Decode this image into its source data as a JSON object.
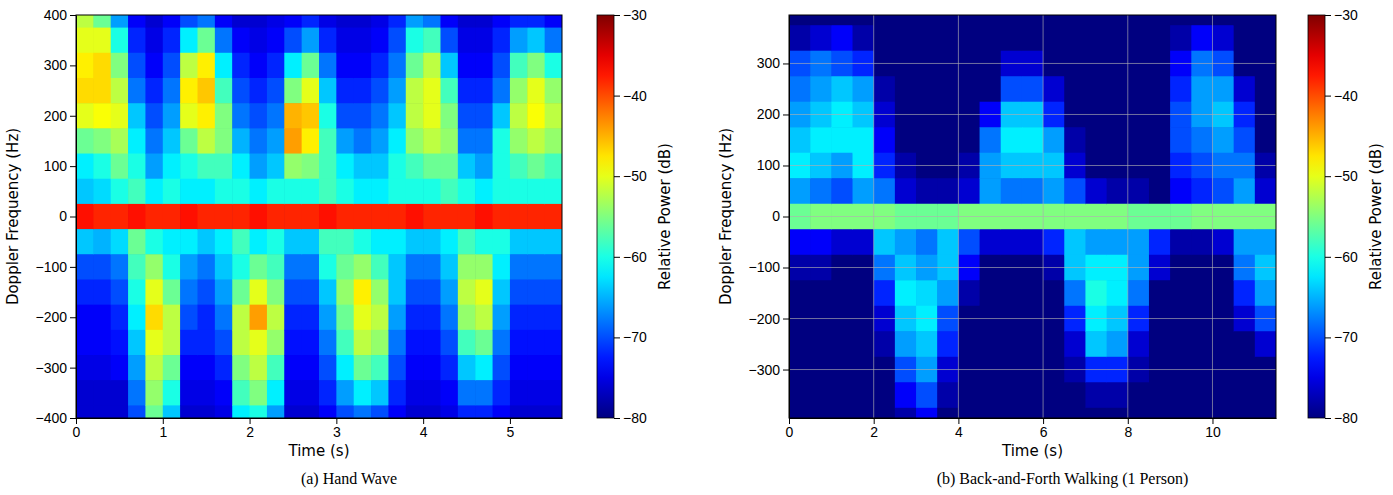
{
  "chart_data": [
    {
      "type": "heatmap",
      "title": "(a) Hand Wave",
      "x_label": "Time (s)",
      "y_label": "Doppler Frequency (Hz)",
      "xlim": [
        0,
        5.6
      ],
      "ylim": [
        -400,
        400
      ],
      "xticks": [
        0,
        1,
        2,
        3,
        4,
        5
      ],
      "yticks": [
        {
          "value": -400,
          "label": "−400"
        },
        {
          "value": -300,
          "label": "−300"
        },
        {
          "value": -200,
          "label": "−200"
        },
        {
          "value": -100,
          "label": "−100"
        },
        0,
        100,
        200,
        300,
        400
      ],
      "grid": false,
      "x": [
        0.1,
        0.3,
        0.5,
        0.7,
        0.9,
        1.1,
        1.3,
        1.5,
        1.7,
        1.9,
        2.1,
        2.3,
        2.5,
        2.7,
        2.9,
        3.1,
        3.3,
        3.5,
        3.7,
        3.9,
        4.1,
        4.3,
        4.5,
        4.7,
        4.9,
        5.1,
        5.3,
        5.5
      ],
      "y": [
        400,
        350,
        300,
        250,
        200,
        150,
        100,
        50,
        0,
        -50,
        -100,
        -150,
        -200,
        -250,
        -300,
        -350,
        -400
      ],
      "values": [
        [
          -52,
          -50,
          -48,
          -47,
          -50,
          -56,
          -62,
          -64,
          -37,
          -64,
          -70,
          -72,
          -74,
          -74,
          -75,
          -76,
          -76
        ],
        [
          -56,
          -50,
          -47,
          -47,
          -49,
          -55,
          -60,
          -63,
          -38,
          -65,
          -70,
          -72,
          -74,
          -74,
          -75,
          -76,
          -76
        ],
        [
          -66,
          -60,
          -55,
          -52,
          -50,
          -53,
          -56,
          -60,
          -38,
          -63,
          -68,
          -70,
          -72,
          -73,
          -74,
          -76,
          -76
        ],
        [
          -74,
          -72,
          -70,
          -68,
          -64,
          -62,
          -60,
          -58,
          -37,
          -56,
          -58,
          -60,
          -62,
          -64,
          -66,
          -68,
          -70
        ],
        [
          -76,
          -75,
          -74,
          -72,
          -70,
          -68,
          -66,
          -62,
          -38,
          -60,
          -54,
          -50,
          -47,
          -50,
          -52,
          -54,
          -56
        ],
        [
          -74,
          -72,
          -70,
          -68,
          -66,
          -64,
          -62,
          -60,
          -38,
          -62,
          -60,
          -56,
          -52,
          -52,
          -56,
          -60,
          -64
        ],
        [
          -70,
          -62,
          -52,
          -48,
          -50,
          -56,
          -60,
          -62,
          -37,
          -62,
          -66,
          -68,
          -70,
          -72,
          -74,
          -75,
          -76
        ],
        [
          -68,
          -56,
          -48,
          -46,
          -48,
          -52,
          -58,
          -62,
          -38,
          -64,
          -68,
          -70,
          -72,
          -72,
          -74,
          -75,
          -76
        ],
        [
          -74,
          -68,
          -62,
          -58,
          -55,
          -55,
          -58,
          -60,
          -38,
          -62,
          -64,
          -66,
          -68,
          -70,
          -72,
          -74,
          -75
        ],
        [
          -76,
          -74,
          -72,
          -70,
          -68,
          -65,
          -62,
          -60,
          -38,
          -58,
          -60,
          -56,
          -52,
          -52,
          -55,
          -58,
          -62
        ],
        [
          -76,
          -75,
          -74,
          -72,
          -70,
          -68,
          -66,
          -62,
          -37,
          -62,
          -56,
          -50,
          -44,
          -50,
          -52,
          -55,
          -60
        ],
        [
          -75,
          -74,
          -72,
          -70,
          -68,
          -66,
          -64,
          -60,
          -38,
          -60,
          -58,
          -55,
          -52,
          -54,
          -58,
          -62,
          -66
        ],
        [
          -74,
          -70,
          -62,
          -55,
          -45,
          -44,
          -54,
          -60,
          -38,
          -64,
          -68,
          -70,
          -72,
          -73,
          -74,
          -75,
          -76
        ],
        [
          -72,
          -66,
          -56,
          -50,
          -46,
          -48,
          -55,
          -60,
          -38,
          -64,
          -68,
          -70,
          -72,
          -73,
          -74,
          -75,
          -76
        ],
        [
          -75,
          -72,
          -68,
          -64,
          -60,
          -58,
          -58,
          -58,
          -37,
          -58,
          -60,
          -64,
          -66,
          -68,
          -70,
          -72,
          -74
        ],
        [
          -76,
          -75,
          -74,
          -72,
          -70,
          -66,
          -62,
          -60,
          -38,
          -58,
          -56,
          -54,
          -56,
          -58,
          -62,
          -66,
          -70
        ],
        [
          -76,
          -75,
          -74,
          -72,
          -70,
          -68,
          -64,
          -62,
          -38,
          -60,
          -54,
          -48,
          -50,
          -52,
          -56,
          -62,
          -68
        ],
        [
          -75,
          -74,
          -72,
          -70,
          -68,
          -66,
          -64,
          -62,
          -38,
          -62,
          -58,
          -54,
          -52,
          -54,
          -58,
          -64,
          -70
        ],
        [
          -72,
          -70,
          -68,
          -66,
          -64,
          -62,
          -60,
          -60,
          -38,
          -62,
          -64,
          -64,
          -66,
          -68,
          -70,
          -72,
          -74
        ],
        [
          -66,
          -60,
          -56,
          -52,
          -52,
          -54,
          -58,
          -60,
          -37,
          -64,
          -68,
          -70,
          -72,
          -73,
          -74,
          -75,
          -76
        ],
        [
          -68,
          -58,
          -52,
          -50,
          -50,
          -52,
          -56,
          -60,
          -38,
          -64,
          -68,
          -70,
          -72,
          -73,
          -74,
          -75,
          -76
        ],
        [
          -74,
          -70,
          -64,
          -58,
          -55,
          -54,
          -56,
          -58,
          -38,
          -62,
          -64,
          -66,
          -68,
          -70,
          -72,
          -74,
          -75
        ],
        [
          -76,
          -75,
          -74,
          -72,
          -70,
          -68,
          -64,
          -60,
          -38,
          -58,
          -54,
          -52,
          -54,
          -58,
          -64,
          -68,
          -72
        ],
        [
          -76,
          -75,
          -74,
          -72,
          -70,
          -68,
          -66,
          -62,
          -37,
          -60,
          -54,
          -50,
          -52,
          -56,
          -62,
          -68,
          -72
        ],
        [
          -74,
          -72,
          -70,
          -68,
          -64,
          -60,
          -60,
          -60,
          -38,
          -60,
          -62,
          -64,
          -66,
          -68,
          -70,
          -72,
          -74
        ],
        [
          -72,
          -66,
          -58,
          -54,
          -52,
          -54,
          -58,
          -60,
          -38,
          -64,
          -68,
          -70,
          -72,
          -73,
          -74,
          -75,
          -76
        ],
        [
          -72,
          -64,
          -55,
          -50,
          -49,
          -52,
          -56,
          -60,
          -38,
          -64,
          -68,
          -70,
          -72,
          -73,
          -74,
          -75,
          -76
        ],
        [
          -74,
          -68,
          -60,
          -54,
          -52,
          -54,
          -58,
          -60,
          -38,
          -64,
          -68,
          -70,
          -72,
          -73,
          -74,
          -75,
          -76
        ]
      ],
      "colorbar": {
        "label": "Relative Power (dB)",
        "range": [
          -80,
          -30
        ],
        "ticks": [
          {
            "value": -80,
            "label": "−80"
          },
          {
            "value": -70,
            "label": "−70"
          },
          {
            "value": -60,
            "label": "−60"
          },
          {
            "value": -50,
            "label": "−50"
          },
          {
            "value": -40,
            "label": "−40"
          },
          {
            "value": -30,
            "label": "−30"
          }
        ]
      }
    },
    {
      "type": "heatmap",
      "title": "(b) Back-and-Forth Walking (1 Person)",
      "x_label": "Time (s)",
      "y_label": "Doppler Frequency (Hz)",
      "xlim": [
        0,
        11.5
      ],
      "ylim": [
        -395,
        395
      ],
      "xticks": [
        0,
        2,
        4,
        6,
        8,
        10
      ],
      "yticks": [
        {
          "value": -300,
          "label": "−300"
        },
        {
          "value": -200,
          "label": "−200"
        },
        {
          "value": -100,
          "label": "−100"
        },
        0,
        100,
        200,
        300
      ],
      "grid": true,
      "x": [
        0.25,
        0.75,
        1.25,
        1.75,
        2.25,
        2.75,
        3.25,
        3.75,
        4.25,
        4.75,
        5.25,
        5.75,
        6.25,
        6.75,
        7.25,
        7.75,
        8.25,
        8.75,
        9.25,
        9.75,
        10.25,
        10.75,
        11.25
      ],
      "y": [
        400,
        350,
        300,
        250,
        200,
        150,
        100,
        50,
        0,
        -50,
        -100,
        -150,
        -200,
        -250,
        -300,
        -350,
        -400
      ],
      "values": [
        [
          -80,
          -78,
          -70,
          -68,
          -66,
          -64,
          -62,
          -66,
          -56,
          -74,
          -78,
          -80,
          -80,
          -80,
          -80,
          -80,
          -80
        ],
        [
          -80,
          -76,
          -68,
          -66,
          -64,
          -62,
          -64,
          -68,
          -55,
          -74,
          -78,
          -80,
          -80,
          -80,
          -80,
          -80,
          -80
        ],
        [
          -80,
          -74,
          -70,
          -64,
          -62,
          -62,
          -66,
          -70,
          -55,
          -76,
          -80,
          -80,
          -80,
          -80,
          -80,
          -80,
          -80
        ],
        [
          -80,
          -78,
          -72,
          -66,
          -64,
          -62,
          -62,
          -66,
          -55,
          -76,
          -80,
          -80,
          -80,
          -80,
          -80,
          -80,
          -80
        ],
        [
          -80,
          -80,
          -80,
          -78,
          -76,
          -74,
          -72,
          -68,
          -55,
          -64,
          -68,
          -72,
          -76,
          -78,
          -80,
          -80,
          -80
        ],
        [
          -80,
          -80,
          -80,
          -80,
          -80,
          -80,
          -78,
          -76,
          -56,
          -66,
          -64,
          -62,
          -64,
          -66,
          -70,
          -74,
          -78
        ],
        [
          -80,
          -80,
          -80,
          -80,
          -80,
          -80,
          -80,
          -78,
          -56,
          -68,
          -66,
          -63,
          -62,
          -64,
          -66,
          -70,
          -74
        ],
        [
          -80,
          -80,
          -80,
          -80,
          -80,
          -80,
          -80,
          -78,
          -56,
          -64,
          -64,
          -66,
          -70,
          -72,
          -76,
          -78,
          -80
        ],
        [
          -80,
          -80,
          -80,
          -80,
          -80,
          -80,
          -78,
          -76,
          -55,
          -70,
          -74,
          -78,
          -80,
          -80,
          -80,
          -80,
          -80
        ],
        [
          -80,
          -80,
          -80,
          -80,
          -74,
          -68,
          -66,
          -66,
          -55,
          -76,
          -80,
          -80,
          -80,
          -80,
          -80,
          -80,
          -80
        ],
        [
          -80,
          -80,
          -76,
          -70,
          -64,
          -62,
          -64,
          -68,
          -55,
          -76,
          -80,
          -80,
          -80,
          -80,
          -80,
          -80,
          -80
        ],
        [
          -80,
          -80,
          -76,
          -70,
          -64,
          -62,
          -64,
          -68,
          -55,
          -76,
          -80,
          -80,
          -80,
          -80,
          -80,
          -80,
          -80
        ],
        [
          -80,
          -80,
          -80,
          -76,
          -72,
          -66,
          -64,
          -66,
          -55,
          -72,
          -78,
          -80,
          -80,
          -80,
          -80,
          -80,
          -80
        ],
        [
          -80,
          -80,
          -80,
          -80,
          -80,
          -78,
          -76,
          -70,
          -55,
          -64,
          -64,
          -68,
          -72,
          -76,
          -78,
          -80,
          -80
        ],
        [
          -80,
          -80,
          -80,
          -80,
          -80,
          -80,
          -80,
          -76,
          -55,
          -66,
          -62,
          -60,
          -62,
          -64,
          -72,
          -78,
          -80
        ],
        [
          -80,
          -80,
          -80,
          -80,
          -80,
          -80,
          -80,
          -78,
          -55,
          -66,
          -62,
          -62,
          -64,
          -66,
          -72,
          -78,
          -80
        ],
        [
          -80,
          -80,
          -80,
          -80,
          -80,
          -80,
          -80,
          -78,
          -56,
          -66,
          -66,
          -68,
          -72,
          -76,
          -78,
          -80,
          -80
        ],
        [
          -80,
          -80,
          -80,
          -80,
          -80,
          -80,
          -80,
          -80,
          -56,
          -72,
          -76,
          -80,
          -80,
          -80,
          -80,
          -80,
          -80
        ],
        [
          -80,
          -78,
          -74,
          -72,
          -70,
          -70,
          -72,
          -74,
          -56,
          -78,
          -80,
          -80,
          -80,
          -80,
          -80,
          -80,
          -80
        ],
        [
          -80,
          -74,
          -68,
          -66,
          -66,
          -68,
          -70,
          -72,
          -55,
          -78,
          -80,
          -80,
          -80,
          -80,
          -80,
          -80,
          -80
        ],
        [
          -80,
          -76,
          -70,
          -66,
          -64,
          -66,
          -68,
          -70,
          -55,
          -76,
          -80,
          -80,
          -80,
          -80,
          -80,
          -80,
          -80
        ],
        [
          -80,
          -80,
          -80,
          -76,
          -72,
          -70,
          -68,
          -66,
          -55,
          -66,
          -68,
          -72,
          -76,
          -80,
          -80,
          -80,
          -80
        ],
        [
          -80,
          -80,
          -80,
          -80,
          -80,
          -80,
          -78,
          -76,
          -55,
          -66,
          -64,
          -66,
          -70,
          -76,
          -80,
          -80,
          -80
        ]
      ],
      "colorbar": {
        "label": "Relative Power (dB)",
        "range": [
          -80,
          -30
        ],
        "ticks": [
          {
            "value": -80,
            "label": "−80"
          },
          {
            "value": -70,
            "label": "−70"
          },
          {
            "value": -60,
            "label": "−60"
          },
          {
            "value": -50,
            "label": "−50"
          },
          {
            "value": -40,
            "label": "−40"
          },
          {
            "value": -30,
            "label": "−30"
          }
        ]
      }
    }
  ]
}
